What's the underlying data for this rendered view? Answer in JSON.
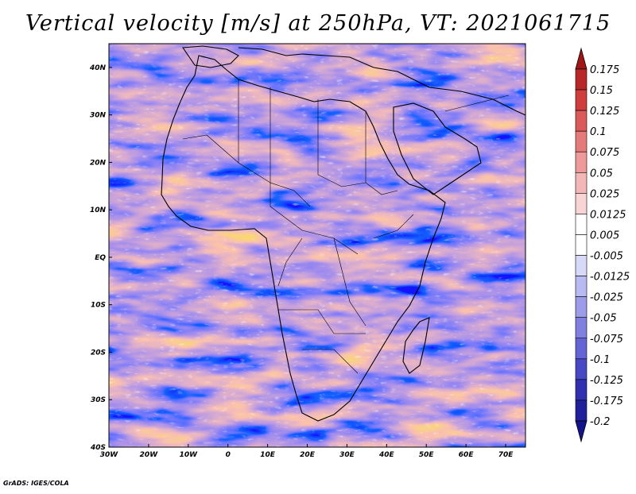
{
  "title": "Vertical velocity [m/s] at 250hPa, VT: 2021061715",
  "credit": "GrADS: IGES/COLA",
  "map": {
    "lat_range": [
      -40,
      45
    ],
    "lon_range": [
      -30,
      75
    ],
    "lat_ticks": [
      {
        "value": 40,
        "label": "40N"
      },
      {
        "value": 30,
        "label": "30N"
      },
      {
        "value": 20,
        "label": "20N"
      },
      {
        "value": 10,
        "label": "10N"
      },
      {
        "value": 0,
        "label": "EQ"
      },
      {
        "value": -10,
        "label": "10S"
      },
      {
        "value": -20,
        "label": "20S"
      },
      {
        "value": -30,
        "label": "30S"
      },
      {
        "value": -40,
        "label": "40S"
      }
    ],
    "lon_ticks": [
      {
        "value": -30,
        "label": "30W"
      },
      {
        "value": -20,
        "label": "20W"
      },
      {
        "value": -10,
        "label": "10W"
      },
      {
        "value": 0,
        "label": "0"
      },
      {
        "value": 10,
        "label": "10E"
      },
      {
        "value": 20,
        "label": "20E"
      },
      {
        "value": 30,
        "label": "30E"
      },
      {
        "value": 40,
        "label": "40E"
      },
      {
        "value": 50,
        "label": "50E"
      },
      {
        "value": 60,
        "label": "60E"
      },
      {
        "value": 70,
        "label": "70E"
      }
    ]
  },
  "colorbar": {
    "levels": [
      "0.175",
      "0.15",
      "0.125",
      "0.1",
      "0.075",
      "0.05",
      "0.025",
      "0.0125",
      "0.005",
      "-0.005",
      "-0.0125",
      "-0.025",
      "-0.05",
      "-0.075",
      "-0.1",
      "-0.125",
      "-0.175",
      "-0.2"
    ],
    "colors": [
      "#a01616",
      "#b82828",
      "#cf3d3d",
      "#db5a5a",
      "#e57a7a",
      "#ee9a9a",
      "#f4b7b7",
      "#f9d4d4",
      "#ffffff",
      "#ffffff",
      "#d8d8f8",
      "#babaf2",
      "#9c9ce9",
      "#8080e0",
      "#6464d4",
      "#4848c4",
      "#3030b0",
      "#20209a",
      "#14148a"
    ]
  }
}
